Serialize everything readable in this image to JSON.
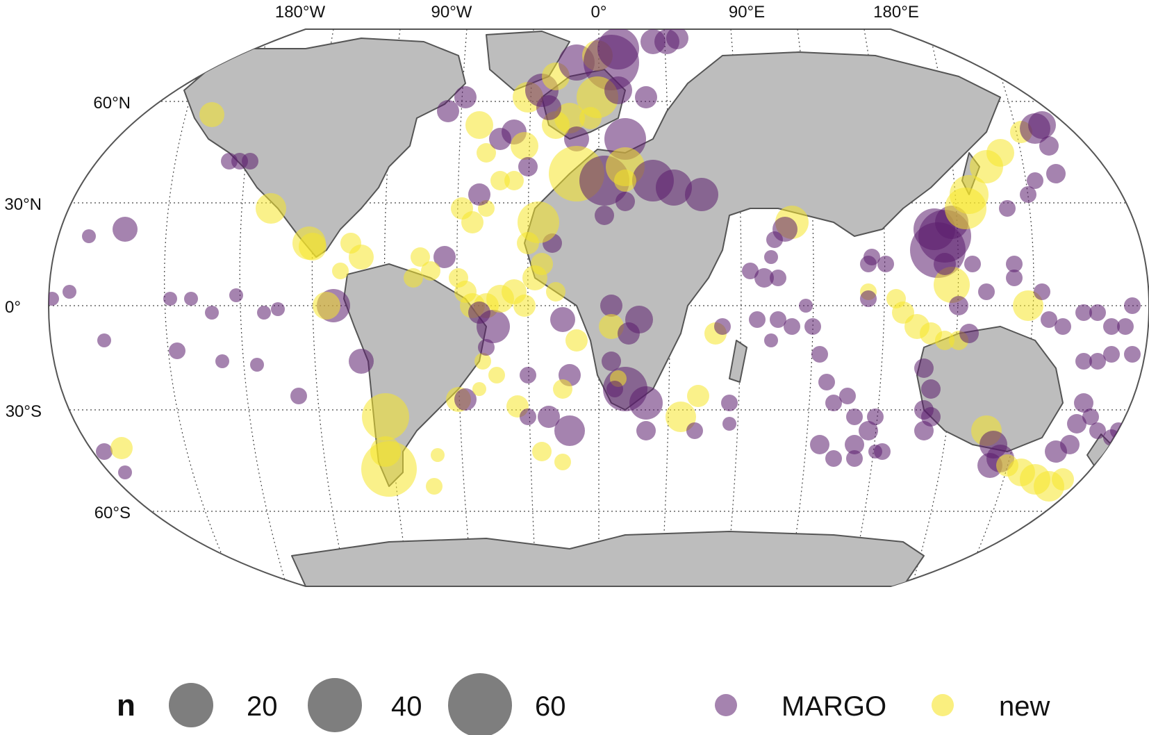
{
  "map": {
    "lon_labels": [
      "180°W",
      "90°W",
      "0°",
      "90°E",
      "180°E"
    ],
    "lat_labels": [
      "60°N",
      "30°N",
      "0°",
      "30°S",
      "60°S"
    ]
  },
  "legend": {
    "size_title": "n",
    "size_values": [
      "20",
      "40",
      "60"
    ],
    "series": [
      {
        "name": "MARGO",
        "color": "#5b1d6e"
      },
      {
        "name": "new",
        "color": "#f6e529"
      }
    ]
  },
  "colors": {
    "land": "#bdbdbd",
    "coast": "#555555",
    "ocean": "#ffffff",
    "margo": "#5b1d6e",
    "new": "#f6e529"
  }
}
